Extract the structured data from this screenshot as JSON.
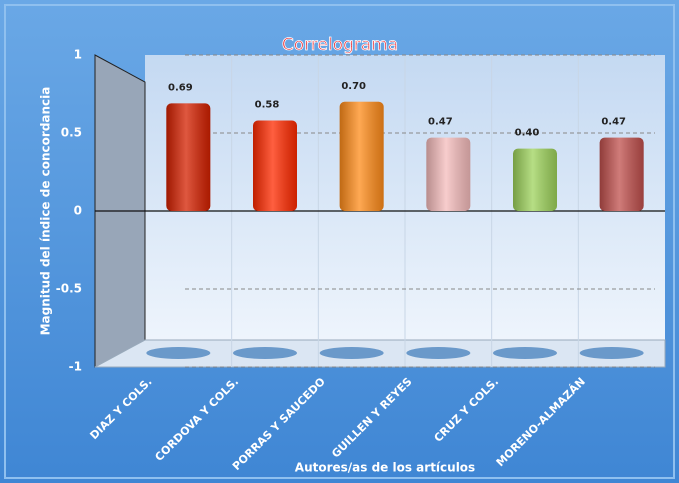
{
  "chart_data": {
    "type": "bar",
    "title": "Correlograma",
    "y_label": "Magnitud del índice de concordancia",
    "x_label": "Autores/as de los artículos",
    "categories": [
      "DIAZ Y COLS.",
      "CORDOVA Y COLS.",
      "PORRAS Y SAUCEDO",
      "GUILLEN Y REYES",
      "CRUZ Y COLS.",
      "MORENO-ALMAZÁN"
    ],
    "values": [
      0.69,
      0.58,
      0.7,
      0.47,
      0.4,
      0.47
    ],
    "value_labels": [
      "0.69",
      "0.58",
      "0.70",
      "0.47",
      "0.40",
      "0.47"
    ],
    "colors": [
      "#d42000",
      "#ff2a00",
      "#ff8c1a",
      "#f5bcbc",
      "#9ed35c",
      "#c0504d"
    ],
    "ylim": [
      -1,
      1
    ],
    "yticks": [
      -1,
      -0.5,
      0,
      0.5,
      1
    ],
    "grid": true
  }
}
